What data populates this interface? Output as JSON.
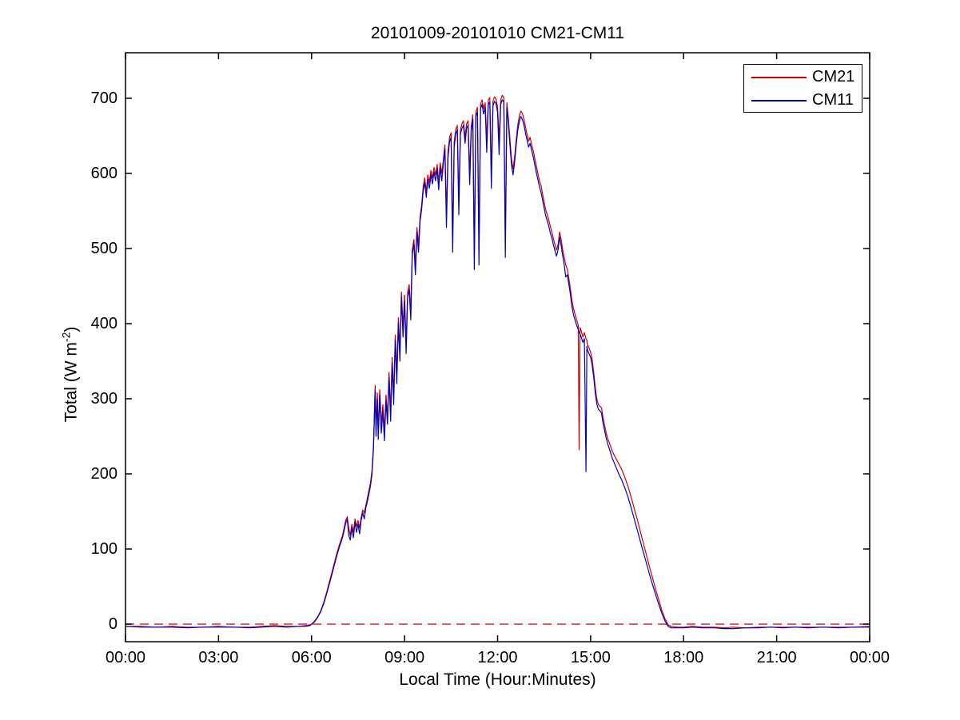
{
  "figure": {
    "title": "20101009-20101010 CM21-CM11",
    "x_axis": {
      "label": "Local Time (Hour:Minutes)",
      "ticks": [
        {
          "h": 0,
          "label": "00:00"
        },
        {
          "h": 3,
          "label": "03:00"
        },
        {
          "h": 6,
          "label": "06:00"
        },
        {
          "h": 9,
          "label": "09:00"
        },
        {
          "h": 12,
          "label": "12:00"
        },
        {
          "h": 15,
          "label": "15:00"
        },
        {
          "h": 18,
          "label": "18:00"
        },
        {
          "h": 21,
          "label": "21:00"
        },
        {
          "h": 24,
          "label": "00:00"
        }
      ]
    },
    "y_axis": {
      "label_prefix": "Total (W m",
      "label_sup": "-2",
      "label_suffix": ")",
      "ticks": [
        0,
        100,
        200,
        300,
        400,
        500,
        600,
        700
      ]
    },
    "legend": {
      "entries": [
        {
          "label": "CM21",
          "color": "#cc0000"
        },
        {
          "label": "CM11",
          "color": "#0000bb"
        }
      ]
    },
    "colors": {
      "cm21": "#cc0000",
      "cm11": "#0000bb",
      "zero_line": "#cc0000",
      "axis": "#000000",
      "background": "#ffffff"
    }
  },
  "chart_data": {
    "type": "line",
    "title": "20101009-20101010 CM21-CM11",
    "xlabel": "Local Time (Hour:Minutes)",
    "ylabel": "Total (W m^-2)",
    "x_unit": "decimal_hours_local_time",
    "xlim_hours": [
      0,
      24
    ],
    "ylim": [
      -25,
      760
    ],
    "grid": false,
    "legend_position": "top-right",
    "zero_reference_line": {
      "y": 0,
      "style": "dashed",
      "color": "#cc0000"
    },
    "series_names": [
      "CM21",
      "CM11"
    ],
    "points_format": [
      "hour",
      "CM21_Wm2",
      "CM11_Wm2"
    ],
    "points": [
      [
        0.0,
        -3,
        -3
      ],
      [
        0.5,
        -3,
        -4
      ],
      [
        1.0,
        -4,
        -4
      ],
      [
        1.5,
        -3,
        -4
      ],
      [
        2.0,
        -4,
        -5
      ],
      [
        2.5,
        -4,
        -4
      ],
      [
        3.0,
        -3,
        -4
      ],
      [
        3.5,
        -4,
        -4
      ],
      [
        4.0,
        -4,
        -5
      ],
      [
        4.4,
        -3,
        -4
      ],
      [
        4.8,
        -2,
        -3
      ],
      [
        5.2,
        -3,
        -4
      ],
      [
        5.6,
        -3,
        -3
      ],
      [
        5.8,
        -2,
        -3
      ],
      [
        5.95,
        -1,
        -2
      ],
      [
        6.0,
        0,
        0
      ],
      [
        6.1,
        4,
        3
      ],
      [
        6.2,
        10,
        9
      ],
      [
        6.3,
        18,
        17
      ],
      [
        6.4,
        30,
        28
      ],
      [
        6.5,
        44,
        42
      ],
      [
        6.6,
        60,
        57
      ],
      [
        6.7,
        76,
        73
      ],
      [
        6.8,
        92,
        89
      ],
      [
        6.9,
        106,
        103
      ],
      [
        7.0,
        118,
        115
      ],
      [
        7.05,
        128,
        124
      ],
      [
        7.1,
        138,
        134
      ],
      [
        7.15,
        143,
        140
      ],
      [
        7.2,
        128,
        118
      ],
      [
        7.25,
        118,
        112
      ],
      [
        7.3,
        133,
        128
      ],
      [
        7.35,
        122,
        115
      ],
      [
        7.4,
        140,
        136
      ],
      [
        7.45,
        130,
        122
      ],
      [
        7.5,
        138,
        133
      ],
      [
        7.55,
        128,
        120
      ],
      [
        7.6,
        142,
        138
      ],
      [
        7.65,
        152,
        148
      ],
      [
        7.7,
        148,
        140
      ],
      [
        7.75,
        158,
        154
      ],
      [
        7.8,
        168,
        163
      ],
      [
        7.85,
        178,
        173
      ],
      [
        7.9,
        188,
        184
      ],
      [
        7.95,
        205,
        200
      ],
      [
        8.0,
        240,
        235
      ],
      [
        8.05,
        318,
        310
      ],
      [
        8.08,
        262,
        250
      ],
      [
        8.12,
        308,
        300
      ],
      [
        8.15,
        258,
        246
      ],
      [
        8.2,
        312,
        305
      ],
      [
        8.25,
        268,
        254
      ],
      [
        8.3,
        292,
        283
      ],
      [
        8.35,
        258,
        244
      ],
      [
        8.4,
        305,
        297
      ],
      [
        8.45,
        278,
        266
      ],
      [
        8.5,
        335,
        328
      ],
      [
        8.55,
        285,
        270
      ],
      [
        8.6,
        355,
        348
      ],
      [
        8.65,
        305,
        292
      ],
      [
        8.7,
        385,
        378
      ],
      [
        8.75,
        335,
        320
      ],
      [
        8.8,
        408,
        400
      ],
      [
        8.85,
        365,
        350
      ],
      [
        8.9,
        442,
        436
      ],
      [
        8.95,
        395,
        382
      ],
      [
        9.0,
        438,
        430
      ],
      [
        9.05,
        375,
        360
      ],
      [
        9.1,
        442,
        436
      ],
      [
        9.15,
        452,
        445
      ],
      [
        9.2,
        418,
        405
      ],
      [
        9.25,
        498,
        492
      ],
      [
        9.3,
        512,
        506
      ],
      [
        9.35,
        478,
        465
      ],
      [
        9.4,
        528,
        522
      ],
      [
        9.45,
        505,
        495
      ],
      [
        9.5,
        542,
        536
      ],
      [
        9.55,
        558,
        552
      ],
      [
        9.6,
        582,
        576
      ],
      [
        9.65,
        594,
        588
      ],
      [
        9.7,
        576,
        568
      ],
      [
        9.75,
        598,
        592
      ],
      [
        9.8,
        588,
        580
      ],
      [
        9.85,
        604,
        598
      ],
      [
        9.9,
        594,
        586
      ],
      [
        9.95,
        608,
        602
      ],
      [
        10.0,
        598,
        590
      ],
      [
        10.05,
        612,
        606
      ],
      [
        10.1,
        588,
        578
      ],
      [
        10.15,
        614,
        608
      ],
      [
        10.2,
        600,
        590
      ],
      [
        10.25,
        618,
        612
      ],
      [
        10.3,
        638,
        632
      ],
      [
        10.35,
        545,
        528
      ],
      [
        10.4,
        628,
        620
      ],
      [
        10.45,
        648,
        642
      ],
      [
        10.5,
        654,
        648
      ],
      [
        10.55,
        515,
        495
      ],
      [
        10.6,
        642,
        635
      ],
      [
        10.65,
        658,
        652
      ],
      [
        10.7,
        664,
        658
      ],
      [
        10.75,
        565,
        545
      ],
      [
        10.8,
        658,
        652
      ],
      [
        10.85,
        666,
        660
      ],
      [
        10.9,
        670,
        664
      ],
      [
        10.95,
        648,
        640
      ],
      [
        11.0,
        666,
        660
      ],
      [
        11.05,
        670,
        664
      ],
      [
        11.1,
        602,
        585
      ],
      [
        11.15,
        662,
        655
      ],
      [
        11.2,
        678,
        672
      ],
      [
        11.25,
        490,
        472
      ],
      [
        11.3,
        682,
        676
      ],
      [
        11.35,
        688,
        682
      ],
      [
        11.4,
        505,
        478
      ],
      [
        11.45,
        692,
        686
      ],
      [
        11.5,
        698,
        692
      ],
      [
        11.55,
        686,
        679
      ],
      [
        11.6,
        694,
        688
      ],
      [
        11.65,
        645,
        628
      ],
      [
        11.7,
        698,
        692
      ],
      [
        11.75,
        701,
        695
      ],
      [
        11.8,
        600,
        580
      ],
      [
        11.85,
        696,
        690
      ],
      [
        11.9,
        702,
        696
      ],
      [
        11.95,
        699,
        693
      ],
      [
        12.0,
        688,
        681
      ],
      [
        12.05,
        645,
        625
      ],
      [
        12.1,
        698,
        692
      ],
      [
        12.15,
        704,
        698
      ],
      [
        12.2,
        701,
        695
      ],
      [
        12.25,
        512,
        488
      ],
      [
        12.3,
        694,
        688
      ],
      [
        12.35,
        672,
        665
      ],
      [
        12.4,
        645,
        637
      ],
      [
        12.45,
        618,
        610
      ],
      [
        12.5,
        606,
        598
      ],
      [
        12.55,
        622,
        615
      ],
      [
        12.6,
        645,
        638
      ],
      [
        12.65,
        664,
        657
      ],
      [
        12.7,
        676,
        669
      ],
      [
        12.75,
        683,
        676
      ],
      [
        12.8,
        680,
        672
      ],
      [
        12.85,
        672,
        664
      ],
      [
        12.9,
        662,
        654
      ],
      [
        12.95,
        652,
        644
      ],
      [
        13.0,
        643,
        635
      ],
      [
        13.05,
        648,
        640
      ],
      [
        13.1,
        638,
        630
      ],
      [
        13.15,
        630,
        622
      ],
      [
        13.2,
        620,
        612
      ],
      [
        13.25,
        610,
        601
      ],
      [
        13.3,
        600,
        592
      ],
      [
        13.35,
        590,
        582
      ],
      [
        13.4,
        584,
        575
      ],
      [
        13.45,
        573,
        565
      ],
      [
        13.5,
        562,
        554
      ],
      [
        13.55,
        552,
        544
      ],
      [
        13.6,
        545,
        537
      ],
      [
        13.65,
        538,
        530
      ],
      [
        13.7,
        530,
        521
      ],
      [
        13.75,
        522,
        514
      ],
      [
        13.8,
        513,
        505
      ],
      [
        13.85,
        505,
        497
      ],
      [
        13.9,
        498,
        490
      ],
      [
        13.95,
        505,
        498
      ],
      [
        14.0,
        522,
        515
      ],
      [
        14.05,
        512,
        504
      ],
      [
        14.1,
        498,
        490
      ],
      [
        14.15,
        488,
        478
      ],
      [
        14.2,
        478,
        462
      ],
      [
        14.25,
        472,
        465
      ],
      [
        14.3,
        460,
        452
      ],
      [
        14.35,
        446,
        438
      ],
      [
        14.4,
        430,
        422
      ],
      [
        14.45,
        420,
        412
      ],
      [
        14.5,
        412,
        404
      ],
      [
        14.55,
        405,
        398
      ],
      [
        14.6,
        398,
        392
      ],
      [
        14.63,
        232,
        388
      ],
      [
        14.66,
        395,
        386
      ],
      [
        14.7,
        390,
        382
      ],
      [
        14.75,
        382,
        375
      ],
      [
        14.8,
        388,
        380
      ],
      [
        14.85,
        380,
        203
      ],
      [
        14.88,
        378,
        370
      ],
      [
        14.9,
        372,
        365
      ],
      [
        14.95,
        368,
        360
      ],
      [
        15.0,
        362,
        355
      ],
      [
        15.05,
        352,
        345
      ],
      [
        15.1,
        335,
        328
      ],
      [
        15.15,
        315,
        308
      ],
      [
        15.2,
        300,
        293
      ],
      [
        15.25,
        292,
        286
      ],
      [
        15.3,
        290,
        284
      ],
      [
        15.35,
        288,
        281
      ],
      [
        15.4,
        275,
        268
      ],
      [
        15.45,
        265,
        258
      ],
      [
        15.5,
        255,
        248
      ],
      [
        15.55,
        247,
        240
      ],
      [
        15.6,
        242,
        234
      ],
      [
        15.7,
        230,
        221
      ],
      [
        15.8,
        222,
        211
      ],
      [
        15.9,
        214,
        201
      ],
      [
        16.0,
        206,
        192
      ],
      [
        16.1,
        196,
        182
      ],
      [
        16.2,
        184,
        170
      ],
      [
        16.3,
        170,
        156
      ],
      [
        16.4,
        155,
        141
      ],
      [
        16.5,
        140,
        126
      ],
      [
        16.6,
        124,
        111
      ],
      [
        16.7,
        108,
        96
      ],
      [
        16.8,
        92,
        81
      ],
      [
        16.9,
        76,
        66
      ],
      [
        17.0,
        61,
        52
      ],
      [
        17.1,
        46,
        39
      ],
      [
        17.2,
        32,
        26
      ],
      [
        17.3,
        18,
        14
      ],
      [
        17.4,
        7,
        4
      ],
      [
        17.5,
        -1,
        -3
      ],
      [
        17.6,
        -3,
        -5
      ],
      [
        17.8,
        -4,
        -5
      ],
      [
        18.0,
        -4,
        -5
      ],
      [
        18.3,
        -3,
        -4
      ],
      [
        18.6,
        -4,
        -5
      ],
      [
        19.0,
        -4,
        -5
      ],
      [
        19.3,
        -5,
        -6
      ],
      [
        19.6,
        -4,
        -6
      ],
      [
        20.0,
        -5,
        -5
      ],
      [
        20.4,
        -4,
        -5
      ],
      [
        20.8,
        -4,
        -4
      ],
      [
        21.2,
        -4,
        -5
      ],
      [
        21.6,
        -4,
        -4
      ],
      [
        22.0,
        -4,
        -5
      ],
      [
        22.5,
        -4,
        -4
      ],
      [
        23.0,
        -4,
        -5
      ],
      [
        23.5,
        -4,
        -4
      ],
      [
        24.0,
        -3,
        -4
      ]
    ]
  }
}
